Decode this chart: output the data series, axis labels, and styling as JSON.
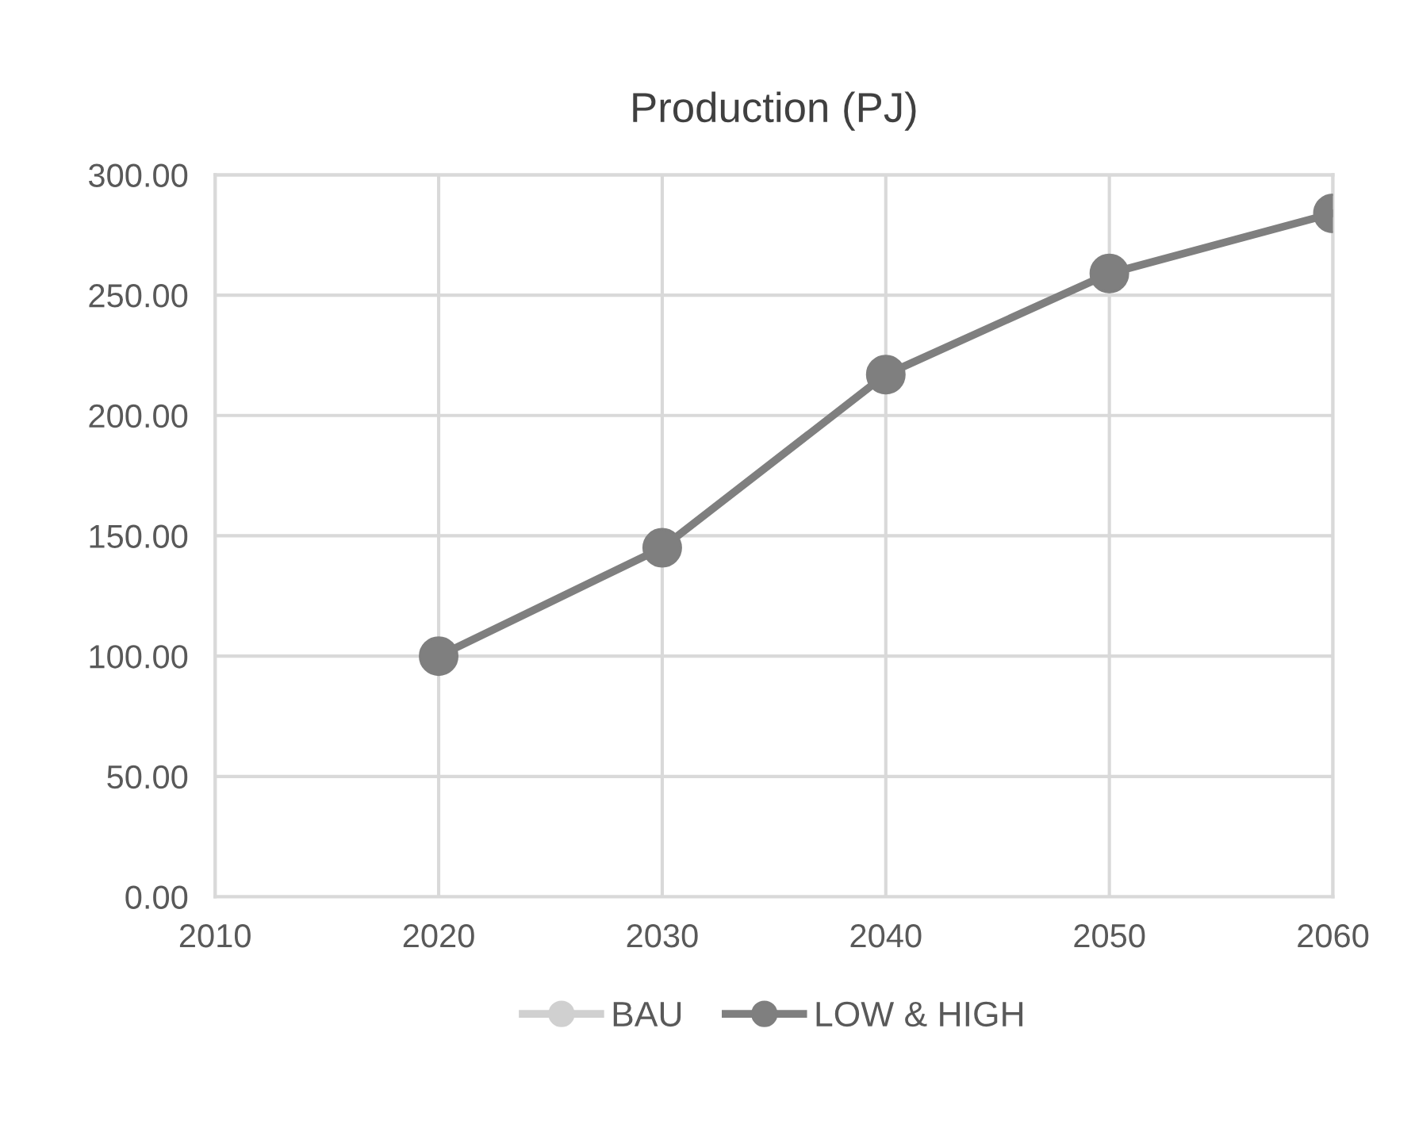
{
  "chart_data": {
    "type": "line",
    "title": "Production (PJ)",
    "x": [
      2020,
      2030,
      2040,
      2050,
      2060
    ],
    "series": [
      {
        "name": "BAU",
        "color": "#d0d0d0",
        "values": [
          null,
          null,
          null,
          null,
          null
        ]
      },
      {
        "name": "LOW & HIGH",
        "color": "#7f7f7f",
        "values": [
          100,
          145,
          217,
          259,
          284
        ]
      }
    ],
    "xlim": [
      2010,
      2060
    ],
    "xticks": [
      2010,
      2020,
      2030,
      2040,
      2050,
      2060
    ],
    "ylim": [
      0,
      300
    ],
    "yticks": [
      {
        "value": 0,
        "label": "0.00"
      },
      {
        "value": 50,
        "label": "50.00"
      },
      {
        "value": 100,
        "label": "100.00"
      },
      {
        "value": 150,
        "label": "150.00"
      },
      {
        "value": 200,
        "label": "200.00"
      },
      {
        "value": 250,
        "label": "250.00"
      },
      {
        "value": 300,
        "label": "300.00"
      }
    ],
    "grid": true,
    "legend": "bottom",
    "marker": "circle",
    "line_style": "solid"
  }
}
